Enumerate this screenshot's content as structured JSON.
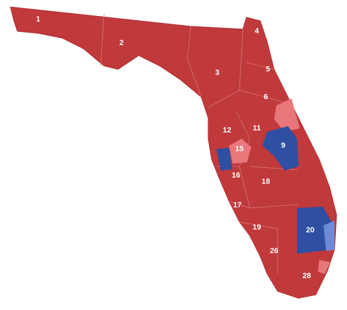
{
  "map": {
    "districts": [
      {
        "label": "1"
      },
      {
        "label": "2"
      },
      {
        "label": "3"
      },
      {
        "label": "4"
      },
      {
        "label": "5"
      },
      {
        "label": "6"
      },
      {
        "label": "9"
      },
      {
        "label": "11"
      },
      {
        "label": "12"
      },
      {
        "label": "15"
      },
      {
        "label": "16"
      },
      {
        "label": "17"
      },
      {
        "label": "18"
      },
      {
        "label": "19"
      },
      {
        "label": "20"
      },
      {
        "label": "26"
      },
      {
        "label": "28"
      }
    ]
  }
}
